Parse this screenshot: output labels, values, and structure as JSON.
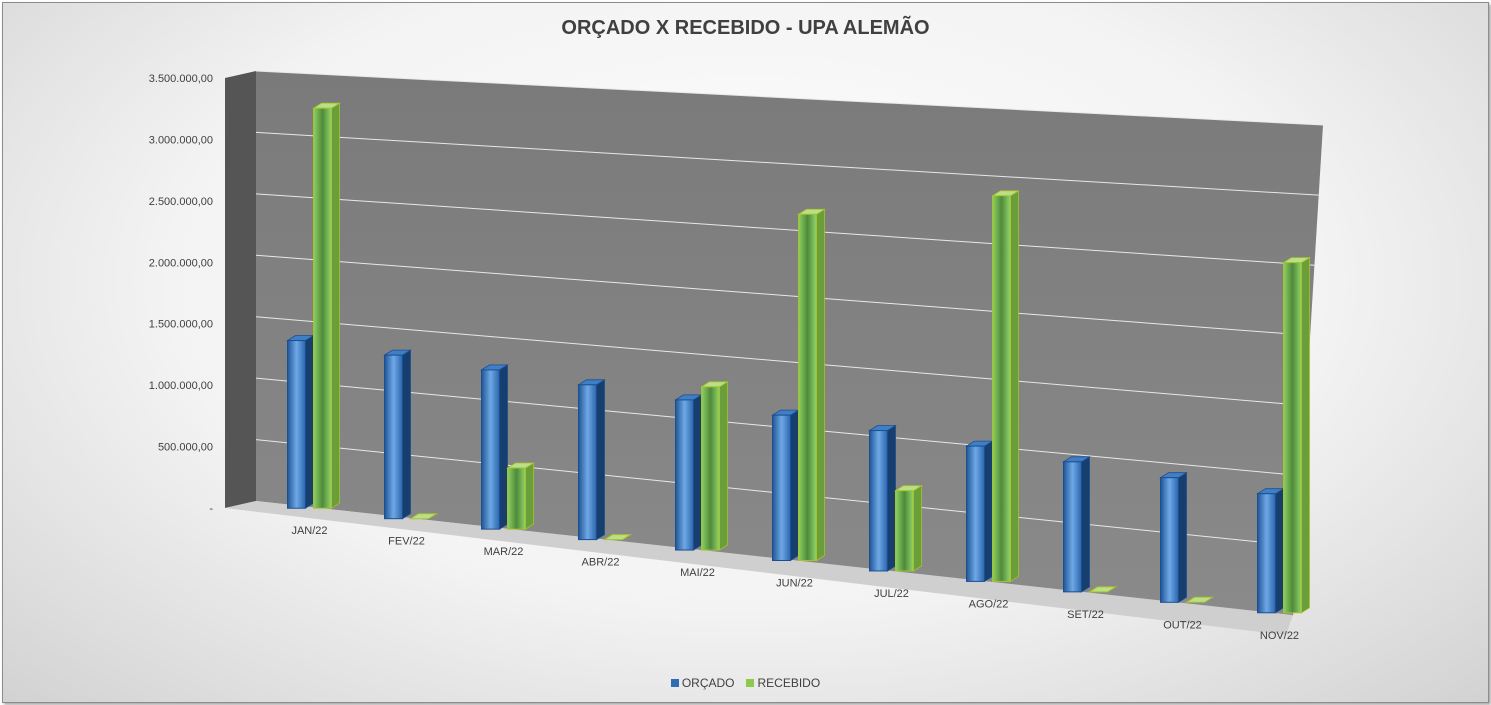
{
  "chart_data": {
    "type": "bar",
    "title": "ORÇADO X RECEBIDO - UPA ALEMÃO",
    "categories": [
      "JAN/22",
      "FEV/22",
      "MAR/22",
      "ABR/22",
      "MAI/22",
      "JUN/22",
      "JUL/22",
      "AGO/22",
      "SET/22",
      "OUT/22",
      "NOV/22"
    ],
    "series": [
      {
        "name": "ORÇADO",
        "color": "#2e6db4",
        "values": [
          1350000,
          1300000,
          1250000,
          1200000,
          1150000,
          1100000,
          1050000,
          1000000,
          950000,
          900000,
          850000
        ]
      },
      {
        "name": "RECEBIDO",
        "color": "#8ec94f",
        "values": [
          3220000,
          0,
          480000,
          0,
          1250000,
          2620000,
          600000,
          2850000,
          0,
          0,
          2500000
        ]
      }
    ],
    "ylim": [
      0,
      3500000
    ],
    "yticks": [
      0,
      500000,
      1000000,
      1500000,
      2000000,
      2500000,
      3000000,
      3500000
    ],
    "ytick_labels": [
      "-",
      "500.000,00",
      "1.000.000,00",
      "1.500.000,00",
      "2.000.000,00",
      "2.500.000,00",
      "3.000.000,00",
      "3.500.000,00"
    ],
    "grid": true,
    "legend_position": "bottom",
    "style": "3d-clustered-column"
  }
}
